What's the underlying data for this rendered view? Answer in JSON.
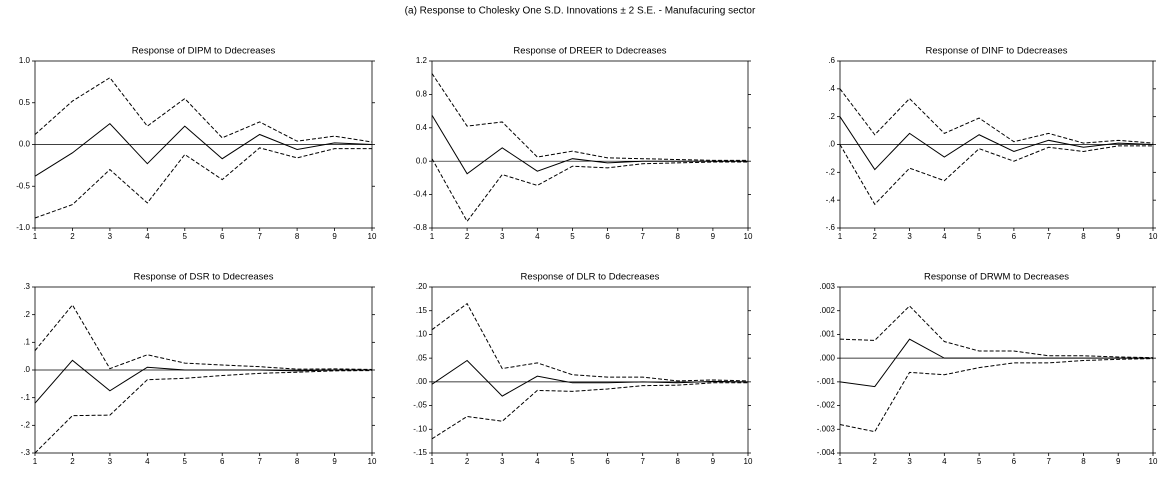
{
  "title": "(a) Response to Cholesky One S.D. Innovations ± 2 S.E. - Manufacuring sector",
  "chart_data": [
    {
      "type": "line",
      "title": "Response of DIPM to Ddecreases",
      "x": [
        1,
        2,
        3,
        4,
        5,
        6,
        7,
        8,
        9,
        10
      ],
      "xlim": [
        1,
        10
      ],
      "xticks": [
        1,
        2,
        3,
        4,
        5,
        6,
        7,
        8,
        9,
        10
      ],
      "ylim": [
        -1.0,
        1.0
      ],
      "yticks": [
        {
          "value": -1.0,
          "label": "-1.0"
        },
        -0.5,
        {
          "value": 0,
          "label": "0.0"
        },
        0.5,
        {
          "value": 1.0,
          "label": "1.0"
        }
      ],
      "series": [
        {
          "color": "#000",
          "style": "solid",
          "values": [
            -0.38,
            -0.1,
            0.25,
            -0.23,
            0.22,
            -0.17,
            0.12,
            -0.06,
            0.02,
            0.0
          ]
        },
        {
          "color": "#000",
          "style": "dashed",
          "values": [
            0.12,
            0.52,
            0.8,
            0.22,
            0.55,
            0.08,
            0.27,
            0.04,
            0.1,
            0.03
          ]
        },
        {
          "color": "#000",
          "style": "dashed",
          "values": [
            -0.88,
            -0.72,
            -0.3,
            -0.7,
            -0.12,
            -0.42,
            -0.04,
            -0.16,
            -0.05,
            -0.05
          ]
        }
      ]
    },
    {
      "type": "line",
      "title": "Response of DREER to Ddecreases",
      "x": [
        1,
        2,
        3,
        4,
        5,
        6,
        7,
        8,
        9,
        10
      ],
      "xlim": [
        1,
        10
      ],
      "xticks": [
        1,
        2,
        3,
        4,
        5,
        6,
        7,
        8,
        9,
        10
      ],
      "ylim": [
        -0.8,
        1.2
      ],
      "yticks": [
        -0.8,
        -0.4,
        {
          "value": 0,
          "label": "0.0"
        },
        0.4,
        0.8,
        1.2
      ],
      "series": [
        {
          "color": "#000",
          "style": "solid",
          "values": [
            0.55,
            -0.15,
            0.16,
            -0.12,
            0.03,
            -0.02,
            0.0,
            0.0,
            0.0,
            0.0
          ]
        },
        {
          "color": "#000",
          "style": "dashed",
          "values": [
            1.05,
            0.42,
            0.47,
            0.05,
            0.12,
            0.04,
            0.03,
            0.02,
            0.01,
            0.01
          ]
        },
        {
          "color": "#000",
          "style": "dashed",
          "values": [
            0.03,
            -0.72,
            -0.16,
            -0.29,
            -0.06,
            -0.08,
            -0.03,
            -0.02,
            -0.01,
            -0.01
          ]
        }
      ]
    },
    {
      "type": "line",
      "title": "Response of DINF to Ddecreases",
      "x": [
        1,
        2,
        3,
        4,
        5,
        6,
        7,
        8,
        9,
        10
      ],
      "xlim": [
        1,
        10
      ],
      "xticks": [
        1,
        2,
        3,
        4,
        5,
        6,
        7,
        8,
        9,
        10
      ],
      "ylim": [
        -0.6,
        0.6
      ],
      "yticks": [
        {
          "value": -0.6,
          "label": "-.6"
        },
        {
          "value": -0.4,
          "label": "-.4"
        },
        {
          "value": -0.2,
          "label": "-.2"
        },
        {
          "value": 0,
          "label": ".0"
        },
        {
          "value": 0.2,
          "label": ".2"
        },
        {
          "value": 0.4,
          "label": ".4"
        },
        {
          "value": 0.6,
          "label": ".6"
        }
      ],
      "series": [
        {
          "color": "#000",
          "style": "solid",
          "values": [
            0.2,
            -0.18,
            0.08,
            -0.09,
            0.07,
            -0.05,
            0.03,
            -0.02,
            0.01,
            0.0
          ]
        },
        {
          "color": "#000",
          "style": "dashed",
          "values": [
            0.4,
            0.07,
            0.33,
            0.08,
            0.19,
            0.02,
            0.08,
            0.01,
            0.03,
            0.01
          ]
        },
        {
          "color": "#000",
          "style": "dashed",
          "values": [
            0.0,
            -0.43,
            -0.17,
            -0.26,
            -0.03,
            -0.12,
            -0.02,
            -0.05,
            -0.01,
            -0.01
          ]
        }
      ]
    },
    {
      "type": "line",
      "title": "Response of DSR to Ddecreases",
      "x": [
        1,
        2,
        3,
        4,
        5,
        6,
        7,
        8,
        9,
        10
      ],
      "xlim": [
        1,
        10
      ],
      "xticks": [
        1,
        2,
        3,
        4,
        5,
        6,
        7,
        8,
        9,
        10
      ],
      "ylim": [
        -0.3,
        0.3
      ],
      "yticks": [
        {
          "value": -0.3,
          "label": "-.3"
        },
        {
          "value": -0.2,
          "label": "-.2"
        },
        {
          "value": -0.1,
          "label": "-.1"
        },
        {
          "value": 0,
          "label": ".0"
        },
        {
          "value": 0.1,
          "label": ".1"
        },
        {
          "value": 0.2,
          "label": ".2"
        },
        {
          "value": 0.3,
          "label": ".3"
        }
      ],
      "series": [
        {
          "color": "#000",
          "style": "solid",
          "values": [
            -0.12,
            0.035,
            -0.075,
            0.01,
            0.0,
            0.0,
            0.0,
            -0.003,
            0.0,
            0.0
          ]
        },
        {
          "color": "#000",
          "style": "dashed",
          "values": [
            0.07,
            0.235,
            0.005,
            0.055,
            0.025,
            0.018,
            0.012,
            0.003,
            0.004,
            0.002
          ]
        },
        {
          "color": "#000",
          "style": "dashed",
          "values": [
            -0.3,
            -0.165,
            -0.163,
            -0.035,
            -0.03,
            -0.02,
            -0.012,
            -0.008,
            -0.003,
            -0.002
          ]
        }
      ]
    },
    {
      "type": "line",
      "title": "Response of DLR to Ddecreases",
      "x": [
        1,
        2,
        3,
        4,
        5,
        6,
        7,
        8,
        9,
        10
      ],
      "xlim": [
        1,
        10
      ],
      "xticks": [
        1,
        2,
        3,
        4,
        5,
        6,
        7,
        8,
        9,
        10
      ],
      "ylim": [
        -0.15,
        0.2
      ],
      "yticks": [
        {
          "value": -0.15,
          "label": "-.15"
        },
        {
          "value": -0.1,
          "label": "-.10"
        },
        {
          "value": -0.05,
          "label": "-.05"
        },
        {
          "value": 0,
          "label": ".00"
        },
        {
          "value": 0.05,
          "label": ".05"
        },
        {
          "value": 0.1,
          "label": ".10"
        },
        {
          "value": 0.15,
          "label": ".15"
        },
        {
          "value": 0.2,
          "label": ".20"
        }
      ],
      "series": [
        {
          "color": "#000",
          "style": "solid",
          "values": [
            -0.005,
            0.045,
            -0.03,
            0.012,
            -0.002,
            -0.002,
            0.0,
            -0.002,
            0.001,
            0.0
          ]
        },
        {
          "color": "#000",
          "style": "dashed",
          "values": [
            0.11,
            0.165,
            0.028,
            0.04,
            0.015,
            0.01,
            0.01,
            0.002,
            0.004,
            0.002
          ]
        },
        {
          "color": "#000",
          "style": "dashed",
          "values": [
            -0.12,
            -0.073,
            -0.083,
            -0.018,
            -0.02,
            -0.015,
            -0.008,
            -0.007,
            -0.002,
            -0.002
          ]
        }
      ]
    },
    {
      "type": "line",
      "title": "Response of DRWM to Decreases",
      "x": [
        1,
        2,
        3,
        4,
        5,
        6,
        7,
        8,
        9,
        10
      ],
      "xlim": [
        1,
        10
      ],
      "xticks": [
        1,
        2,
        3,
        4,
        5,
        6,
        7,
        8,
        9,
        10
      ],
      "ylim": [
        -0.004,
        0.003
      ],
      "yticks": [
        {
          "value": -0.004,
          "label": "-.004"
        },
        {
          "value": -0.003,
          "label": "-.003"
        },
        {
          "value": -0.002,
          "label": "-.002"
        },
        {
          "value": -0.001,
          "label": "-.001"
        },
        {
          "value": 0,
          "label": ".000"
        },
        {
          "value": 0.001,
          "label": ".001"
        },
        {
          "value": 0.002,
          "label": ".002"
        },
        {
          "value": 0.003,
          "label": ".003"
        }
      ],
      "series": [
        {
          "color": "#000",
          "style": "solid",
          "values": [
            -0.001,
            -0.0012,
            0.0008,
            0.0,
            0.0,
            0.0,
            0.0,
            0.0,
            0.0,
            0.0
          ]
        },
        {
          "color": "#000",
          "style": "dashed",
          "values": [
            0.0008,
            0.00075,
            0.0022,
            0.0007,
            0.0003,
            0.0003,
            0.0001,
            0.0001,
            5e-05,
            2e-05
          ]
        },
        {
          "color": "#000",
          "style": "dashed",
          "values": [
            -0.0028,
            -0.0031,
            -0.0006,
            -0.0007,
            -0.0004,
            -0.0002,
            -0.0002,
            -0.0001,
            -5e-05,
            -2e-05
          ]
        }
      ]
    }
  ]
}
